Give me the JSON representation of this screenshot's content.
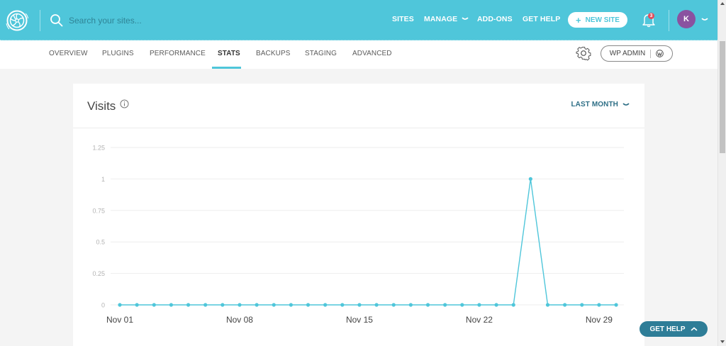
{
  "topbar": {
    "search_placeholder": "Search your sites...",
    "nav": [
      {
        "label": "SITES"
      },
      {
        "label": "MANAGE"
      },
      {
        "label": "ADD-ONS"
      },
      {
        "label": "GET HELP"
      }
    ],
    "new_site_label": "NEW SITE",
    "new_site_icon": "+",
    "notification_count": "3",
    "avatar_initial": "K",
    "colors": {
      "bar": "#4fc6da",
      "avatar": "#8a52a0",
      "badge": "#e34c5b"
    }
  },
  "subnav": {
    "tabs": [
      {
        "label": "OVERVIEW"
      },
      {
        "label": "PLUGINS"
      },
      {
        "label": "PERFORMANCE"
      },
      {
        "label": "STATS",
        "active": true
      },
      {
        "label": "BACKUPS"
      },
      {
        "label": "STAGING"
      },
      {
        "label": "ADVANCED"
      }
    ],
    "wp_admin_label": "WP ADMIN"
  },
  "card": {
    "title": "Visits",
    "period": "LAST MONTH"
  },
  "chart_data": {
    "type": "line",
    "title": "Visits",
    "xlabel": "",
    "ylabel": "",
    "x": [
      "Nov 01",
      "Nov 02",
      "Nov 03",
      "Nov 04",
      "Nov 05",
      "Nov 06",
      "Nov 07",
      "Nov 08",
      "Nov 09",
      "Nov 10",
      "Nov 11",
      "Nov 12",
      "Nov 13",
      "Nov 14",
      "Nov 15",
      "Nov 16",
      "Nov 17",
      "Nov 18",
      "Nov 19",
      "Nov 20",
      "Nov 21",
      "Nov 22",
      "Nov 23",
      "Nov 24",
      "Nov 25",
      "Nov 26",
      "Nov 27",
      "Nov 28",
      "Nov 29",
      "Nov 30"
    ],
    "series": [
      {
        "name": "Visits",
        "color": "#4fc6da",
        "values": [
          0,
          0,
          0,
          0,
          0,
          0,
          0,
          0,
          0,
          0,
          0,
          0,
          0,
          0,
          0,
          0,
          0,
          0,
          0,
          0,
          0,
          0,
          0,
          0,
          1,
          0,
          0,
          0,
          0,
          0
        ]
      }
    ],
    "yticks": [
      "0",
      "0.25",
      "0.5",
      "0.75",
      "1",
      "1.25"
    ],
    "xticks": [
      "Nov 01",
      "Nov 08",
      "Nov 15",
      "Nov 22",
      "Nov 29"
    ],
    "ylim": [
      0,
      1.25
    ],
    "grid": true,
    "legend": "none"
  },
  "floating": {
    "get_help_label": "GET HELP"
  }
}
